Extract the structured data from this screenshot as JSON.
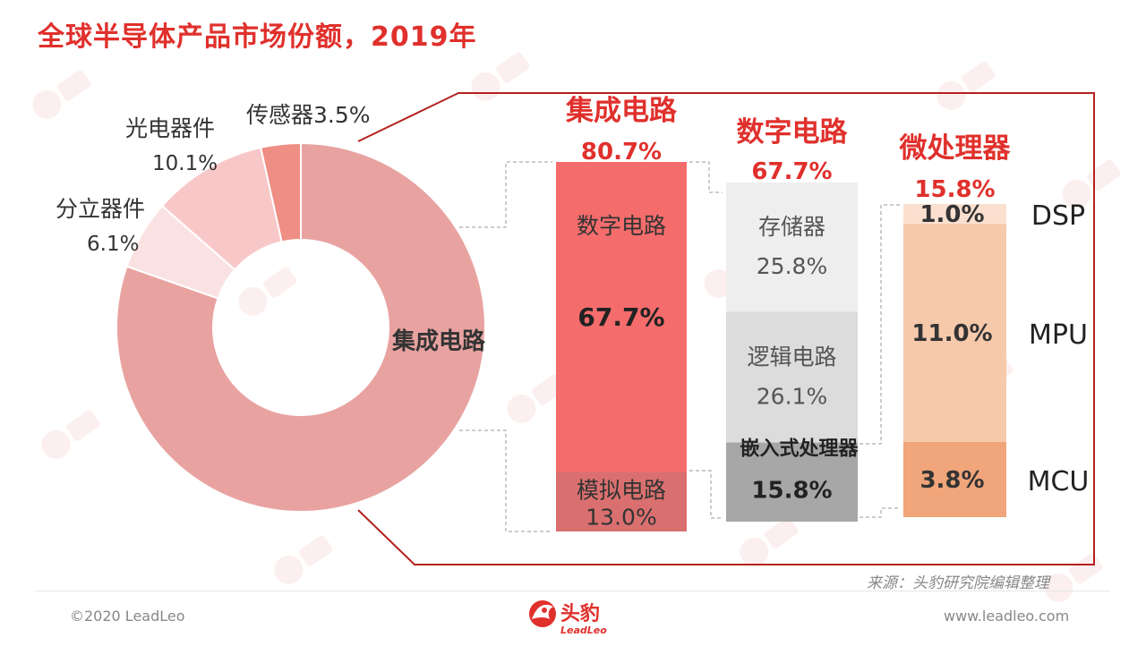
{
  "title": "全球半导体产品市场份额，2019年",
  "chart_data": [
    {
      "type": "pie",
      "slices": [
        {
          "label": "集成电路",
          "value": 80.7,
          "value_text": "",
          "color": "#e8a3a1"
        },
        {
          "label": "分立器件",
          "value": 6.1,
          "value_text": "6.1%",
          "color": "#fbe2e2"
        },
        {
          "label": "光电器件",
          "value": 10.1,
          "value_text": "10.1%",
          "color": "#f8c8c8"
        },
        {
          "label": "传感器",
          "value": 3.5,
          "value_text": "3.5%",
          "color": "#ee8e84"
        }
      ]
    },
    {
      "type": "bar",
      "stacked": true,
      "title": "集成电路",
      "total": "80.7%",
      "segments": [
        {
          "label": "数字电路",
          "value": 67.7,
          "value_text": "67.7%",
          "color": "#f56c6c"
        },
        {
          "label": "模拟电路",
          "value": 13.0,
          "value_text": "13.0%",
          "color": "#d9706f"
        }
      ]
    },
    {
      "type": "bar",
      "stacked": true,
      "title": "数字电路",
      "total": "67.7%",
      "segments": [
        {
          "label": "存储器",
          "value": 25.8,
          "value_text": "25.8%",
          "color": "#eeeeee"
        },
        {
          "label": "逻辑电路",
          "value": 26.1,
          "value_text": "26.1%",
          "color": "#dcdcdc"
        },
        {
          "label": "嵌入式处理器",
          "value": 15.8,
          "value_text": "15.8%",
          "color": "#a7a7a7"
        }
      ]
    },
    {
      "type": "bar",
      "stacked": true,
      "title": "微处理器",
      "total": "15.8%",
      "segments": [
        {
          "label": "DSP",
          "value": 1.0,
          "value_text": "1.0%",
          "color": "#fbe0cf"
        },
        {
          "label": "MPU",
          "value": 11.0,
          "value_text": "11.0%",
          "color": "#f6c9ab"
        },
        {
          "label": "MCU",
          "value": 3.8,
          "value_text": "3.8%",
          "color": "#f0a57a"
        }
      ]
    }
  ],
  "colors": {
    "accent": "#e0302c",
    "frame": "#b3221e",
    "text": "#333333"
  },
  "source": "来源：头豹研究院编辑整理",
  "footer": {
    "copyright": "©2020 LeadLeo",
    "website": "www.leadleo.com"
  },
  "logo": {
    "name": "头豹",
    "sub": "LeadLeo",
    "icon": "leopard-logo-icon"
  }
}
